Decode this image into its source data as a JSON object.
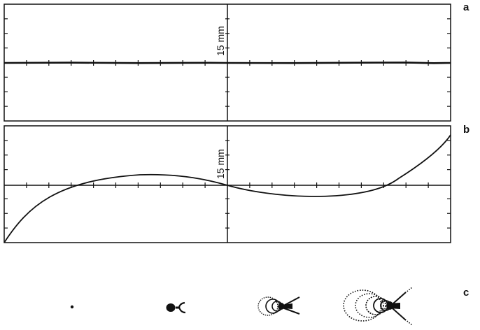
{
  "panels": {
    "a": {
      "label": "a",
      "scale": "15 mm"
    },
    "b": {
      "label": "b",
      "scale": "15 mm"
    },
    "c": {
      "label": "c"
    }
  },
  "colors": {
    "ink": "#111111",
    "background": "#ffffff"
  }
}
